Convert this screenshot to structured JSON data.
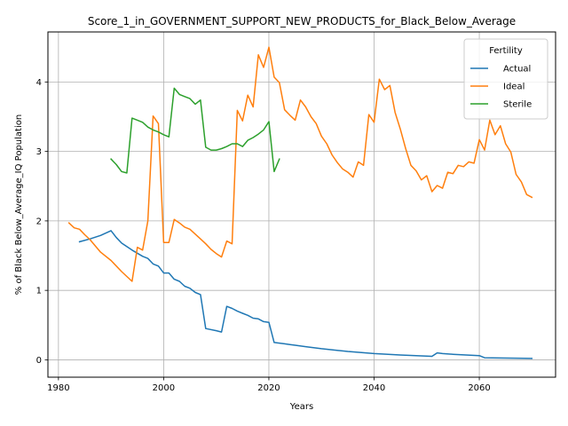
{
  "chart_data": {
    "type": "line",
    "title": "Score_1_in_GOVERNMENT_SUPPORT_NEW_PRODUCTS_for_Black_Below_Average",
    "xlabel": "Years",
    "ylabel": "% of Black Below_Average_IQ Population",
    "xlim": [
      1978,
      2074.5
    ],
    "ylim": [
      -0.25,
      4.72
    ],
    "xticks": [
      1980,
      2000,
      2020,
      2040,
      2060
    ],
    "yticks": [
      0,
      1,
      2,
      3,
      4
    ],
    "grid": true,
    "legend": {
      "title": "Fertility",
      "placement": "top-right"
    },
    "series": [
      {
        "name": "Actual",
        "color": "#1f77b4",
        "x": [
          1984,
          1986,
          1988,
          1990,
          1991,
          1992,
          1994,
          1996,
          1997,
          1998,
          1999,
          2000,
          2001,
          2002,
          2003,
          2004,
          2005,
          2006,
          2007,
          2008,
          2010,
          2011,
          2012,
          2013,
          2014,
          2015,
          2016,
          2017,
          2018,
          2019,
          2020,
          2021,
          2022,
          2023,
          2024,
          2025,
          2027,
          2030,
          2035,
          2040,
          2045,
          2051,
          2052,
          2053,
          2055,
          2060,
          2061,
          2070
        ],
        "y": [
          1.7,
          1.74,
          1.79,
          1.86,
          1.76,
          1.68,
          1.58,
          1.49,
          1.46,
          1.38,
          1.35,
          1.25,
          1.25,
          1.16,
          1.13,
          1.06,
          1.03,
          0.97,
          0.94,
          0.45,
          0.42,
          0.4,
          0.77,
          0.74,
          0.7,
          0.67,
          0.64,
          0.6,
          0.59,
          0.55,
          0.54,
          0.25,
          0.24,
          0.23,
          0.22,
          0.21,
          0.19,
          0.16,
          0.12,
          0.09,
          0.07,
          0.05,
          0.1,
          0.09,
          0.08,
          0.06,
          0.03,
          0.02
        ]
      },
      {
        "name": "Ideal",
        "color": "#ff7f0e",
        "x": [
          1982,
          1983,
          1984,
          1985,
          1986,
          1988,
          1990,
          1992,
          1994,
          1995,
          1996,
          1997,
          1998,
          1999,
          2000,
          2001,
          2002,
          2003,
          2004,
          2005,
          2006,
          2007,
          2008,
          2009,
          2010,
          2011,
          2012,
          2013,
          2014,
          2015,
          2016,
          2017,
          2018,
          2019,
          2020,
          2021,
          2022,
          2023,
          2024,
          2025,
          2026,
          2027,
          2028,
          2029,
          2030,
          2031,
          2032,
          2033,
          2034,
          2035,
          2036,
          2037,
          2038,
          2039,
          2040,
          2041,
          2042,
          2043,
          2044,
          2045,
          2046,
          2047,
          2048,
          2049,
          2050,
          2051,
          2052,
          2053,
          2054,
          2055,
          2056,
          2057,
          2058,
          2059,
          2060,
          2061,
          2062,
          2063,
          2064,
          2065,
          2066,
          2067,
          2068,
          2069,
          2070
        ],
        "y": [
          1.97,
          1.9,
          1.88,
          1.8,
          1.73,
          1.55,
          1.43,
          1.27,
          1.13,
          1.62,
          1.58,
          2.0,
          3.51,
          3.4,
          1.69,
          1.69,
          2.02,
          1.97,
          1.91,
          1.88,
          1.81,
          1.74,
          1.67,
          1.59,
          1.53,
          1.48,
          1.71,
          1.67,
          3.59,
          3.44,
          3.81,
          3.64,
          4.39,
          4.21,
          4.5,
          4.07,
          3.99,
          3.6,
          3.52,
          3.45,
          3.74,
          3.64,
          3.5,
          3.4,
          3.22,
          3.11,
          2.95,
          2.84,
          2.75,
          2.7,
          2.63,
          2.85,
          2.8,
          3.53,
          3.42,
          4.04,
          3.89,
          3.95,
          3.56,
          3.32,
          3.04,
          2.8,
          2.72,
          2.59,
          2.65,
          2.42,
          2.51,
          2.47,
          2.7,
          2.68,
          2.8,
          2.78,
          2.85,
          2.83,
          3.17,
          3.02,
          3.45,
          3.24,
          3.37,
          3.11,
          2.99,
          2.67,
          2.56,
          2.38,
          2.34
        ]
      },
      {
        "name": "Sterile",
        "color": "#2ca02c",
        "x": [
          1990,
          1991,
          1992,
          1993,
          1994,
          1995,
          1996,
          1997,
          1998,
          1999,
          2000,
          2001,
          2002,
          2003,
          2004,
          2005,
          2006,
          2007,
          2008,
          2009,
          2010,
          2011,
          2012,
          2013,
          2014,
          2015,
          2016,
          2017,
          2018,
          2019,
          2020,
          2021,
          2022
        ],
        "y": [
          2.89,
          2.81,
          2.71,
          2.69,
          3.48,
          3.45,
          3.42,
          3.35,
          3.31,
          3.28,
          3.24,
          3.21,
          3.91,
          3.82,
          3.79,
          3.76,
          3.68,
          3.74,
          3.06,
          3.02,
          3.02,
          3.04,
          3.07,
          3.11,
          3.11,
          3.07,
          3.16,
          3.2,
          3.25,
          3.31,
          3.43,
          2.71,
          2.89
        ]
      }
    ]
  }
}
